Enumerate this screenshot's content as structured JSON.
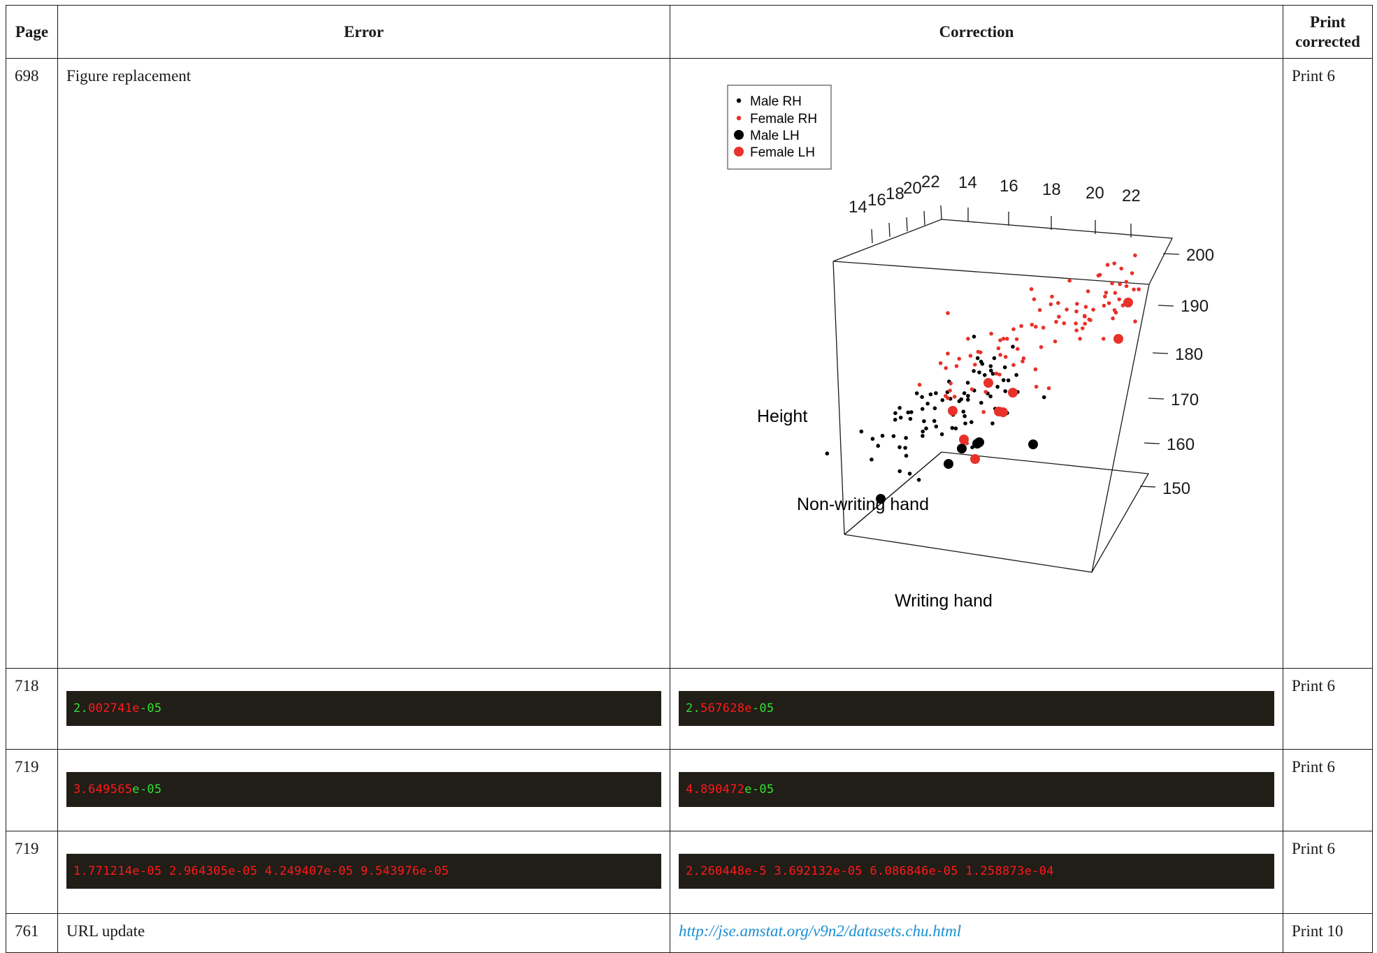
{
  "headers": {
    "page": "Page",
    "error": "Error",
    "correction": "Correction",
    "print": "Print corrected"
  },
  "rows": [
    {
      "page": "698",
      "error": "Figure replacement",
      "print": "Print 6"
    },
    {
      "page": "718",
      "error_code": [
        "2.",
        "002741e",
        "-05"
      ],
      "correction_code": [
        "2.",
        "567628e",
        "-05"
      ],
      "print": "Print 6"
    },
    {
      "page": "719",
      "error_code": [
        "3.649565",
        "e-05"
      ],
      "correction_code": [
        "4.890472",
        "e-05"
      ],
      "print": "Print 6"
    },
    {
      "page": "719",
      "error_code": "1.771214e-05 2.964305e-05 4.249407e-05 9.543976e-05",
      "correction_code": "2.260448e-5 3.692132e-05 6.086846e-05 1.258873e-04",
      "print": "Print 6"
    },
    {
      "page": "761",
      "error": "URL update",
      "correction_link": "http://jse.amstat.org/v9n2/datasets.chu.html",
      "print": "Print 10"
    }
  ],
  "figure": {
    "legend": [
      "Male RH",
      "Female RH",
      "Male LH",
      "Female LH"
    ],
    "colors": {
      "male": "#000000",
      "female": "#e8312a"
    },
    "z_ticks": [
      "200",
      "190",
      "180",
      "170",
      "160",
      "150"
    ],
    "top_left_ticks": [
      "14",
      "16",
      "18",
      "20",
      "22"
    ],
    "top_right_ticks": [
      "14",
      "16",
      "18",
      "20",
      "22"
    ],
    "labels": {
      "height": "Height",
      "non_writing": "Non-writing hand",
      "writing": "Writing hand"
    }
  },
  "chart_data": {
    "type": "scatter",
    "title": "",
    "axes": {
      "x": "Writing hand",
      "y": "Non-writing hand",
      "z": "Height"
    },
    "xlim": [
      14,
      22
    ],
    "ylim": [
      14,
      22
    ],
    "zlim": [
      150,
      200
    ],
    "series": [
      {
        "name": "Male RH",
        "n_points": 80
      },
      {
        "name": "Female RH",
        "n_points": 95
      },
      {
        "name": "Male LH",
        "n_points": 6
      },
      {
        "name": "Female LH",
        "n_points": 9
      }
    ]
  }
}
